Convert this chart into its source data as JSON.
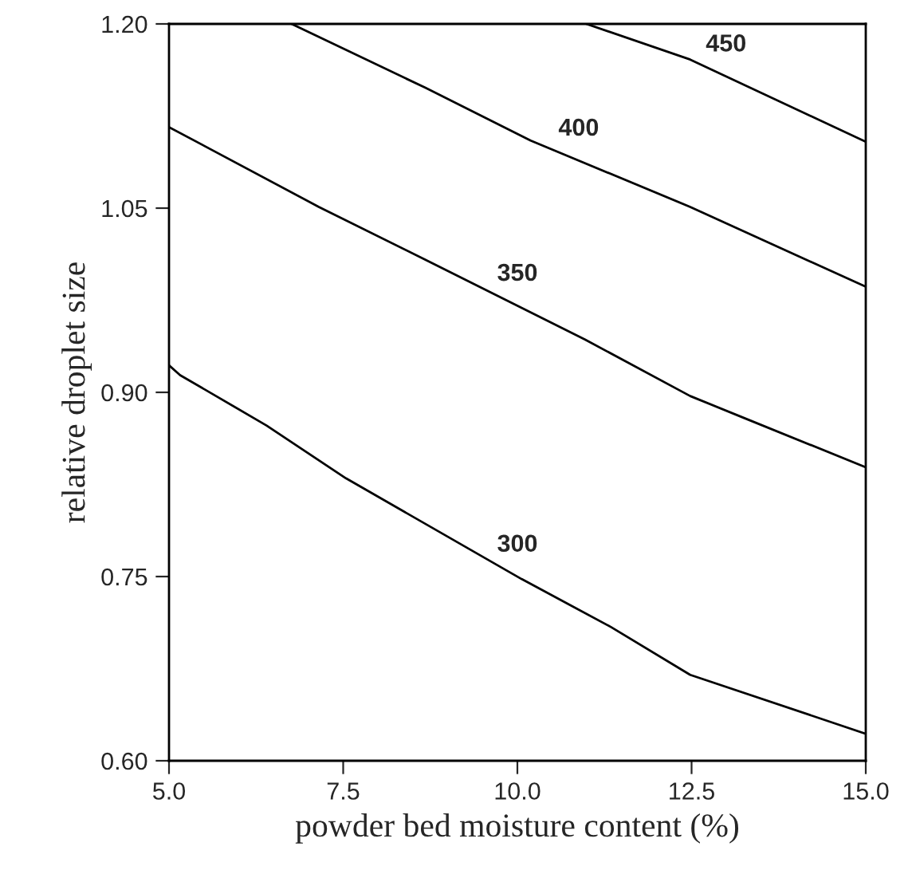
{
  "chart_data": {
    "type": "line",
    "xlabel": "powder bed moisture content (%)",
    "ylabel": "relative droplet size",
    "xlim": [
      5.0,
      15.0
    ],
    "xticks": [
      {
        "value": 5,
        "label": "5.0"
      },
      7.5,
      {
        "value": 10,
        "label": "10.0"
      },
      12.5,
      {
        "value": 15,
        "label": "15.0"
      }
    ],
    "ylim": [
      0.6,
      1.2
    ],
    "yticks": [
      {
        "value": 0.6,
        "label": "0.60"
      },
      0.75,
      {
        "value": 0.9,
        "label": "0.90"
      },
      1.05,
      {
        "value": 1.2,
        "label": "1.20"
      }
    ],
    "grid": false,
    "legend": false,
    "marker": "none",
    "line_style": "solid",
    "series": [
      {
        "name": "300",
        "color": "#000000",
        "x": [
          5.0,
          5.16,
          6.4,
          7.54,
          10.06,
          11.34,
          12.48,
          15.0
        ],
        "values": [
          0.922,
          0.914,
          0.873,
          0.83,
          0.748,
          0.709,
          0.67,
          0.622
        ]
      },
      {
        "name": "350",
        "color": "#000000",
        "x": [
          5.0,
          7.15,
          8.68,
          10.97,
          12.48,
          13.26,
          15.0
        ],
        "values": [
          1.116,
          1.051,
          1.008,
          0.943,
          0.897,
          0.879,
          0.839
        ]
      },
      {
        "name": "400",
        "color": "#000000",
        "x": [
          6.76,
          8.68,
          10.19,
          12.48,
          15.0
        ],
        "values": [
          1.2,
          1.148,
          1.105,
          1.051,
          0.986
        ]
      },
      {
        "name": "450",
        "color": "#000000",
        "x": [
          10.99,
          12.48,
          15.0
        ],
        "values": [
          1.2,
          1.171,
          1.104
        ]
      }
    ]
  }
}
